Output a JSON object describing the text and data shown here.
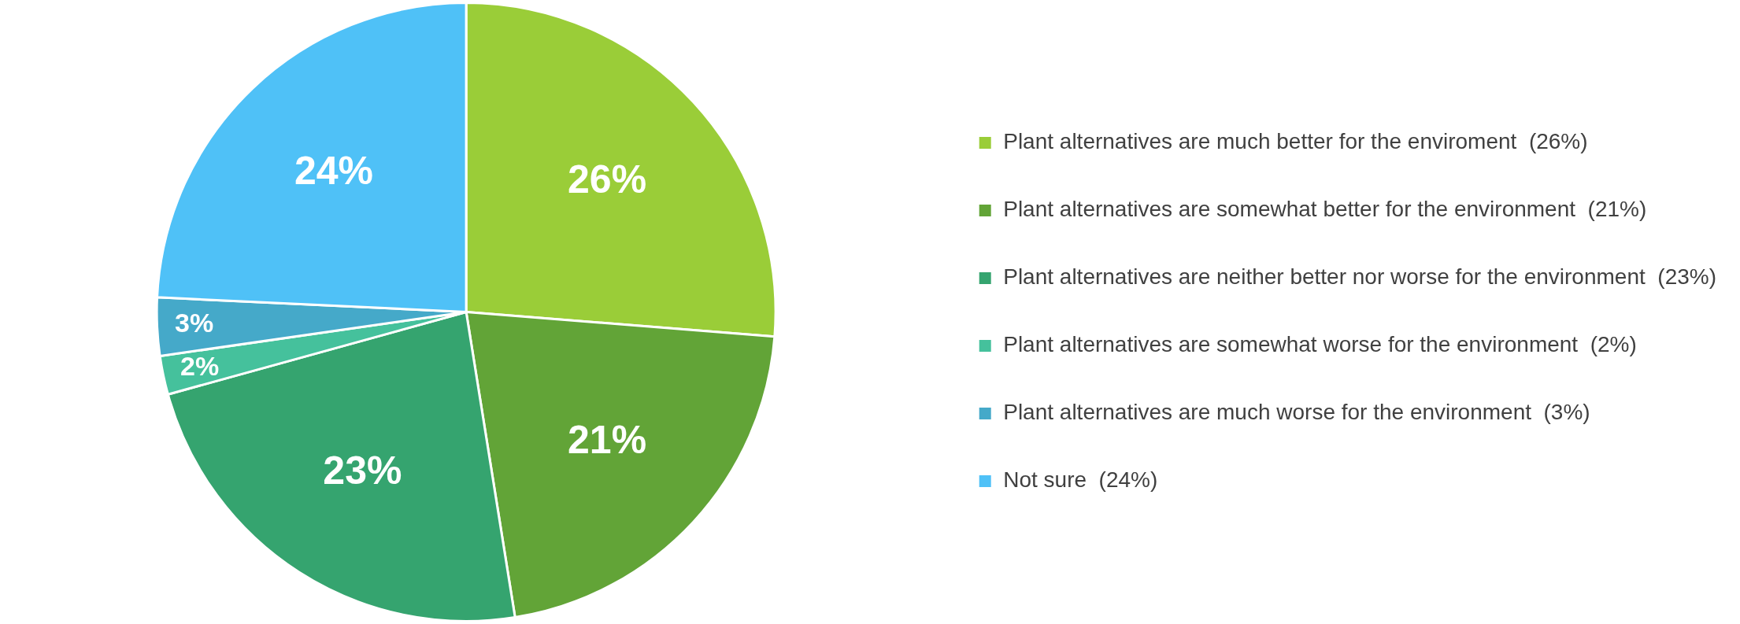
{
  "chart_data": {
    "type": "pie",
    "categories": [
      "Plant alternatives are much better for the enviroment  (26%)",
      "Plant alternatives are somewhat better for the environment  (21%)",
      "Plant alternatives are neither better nor worse for the environment  (23%)",
      "Plant alternatives are somewhat worse for the environment  (2%)",
      "Plant alternatives are much worse for the environment  (3%)",
      "Not sure  (24%)"
    ],
    "values": [
      26,
      21,
      23,
      2,
      3,
      24
    ],
    "colors": [
      "#9acd38",
      "#62a437",
      "#35a46f",
      "#45c19c",
      "#45a9c9",
      "#4fc1f7"
    ],
    "value_labels": [
      "26%",
      "21%",
      "23%",
      "2%",
      "3%",
      "24%"
    ],
    "legend": "right"
  }
}
